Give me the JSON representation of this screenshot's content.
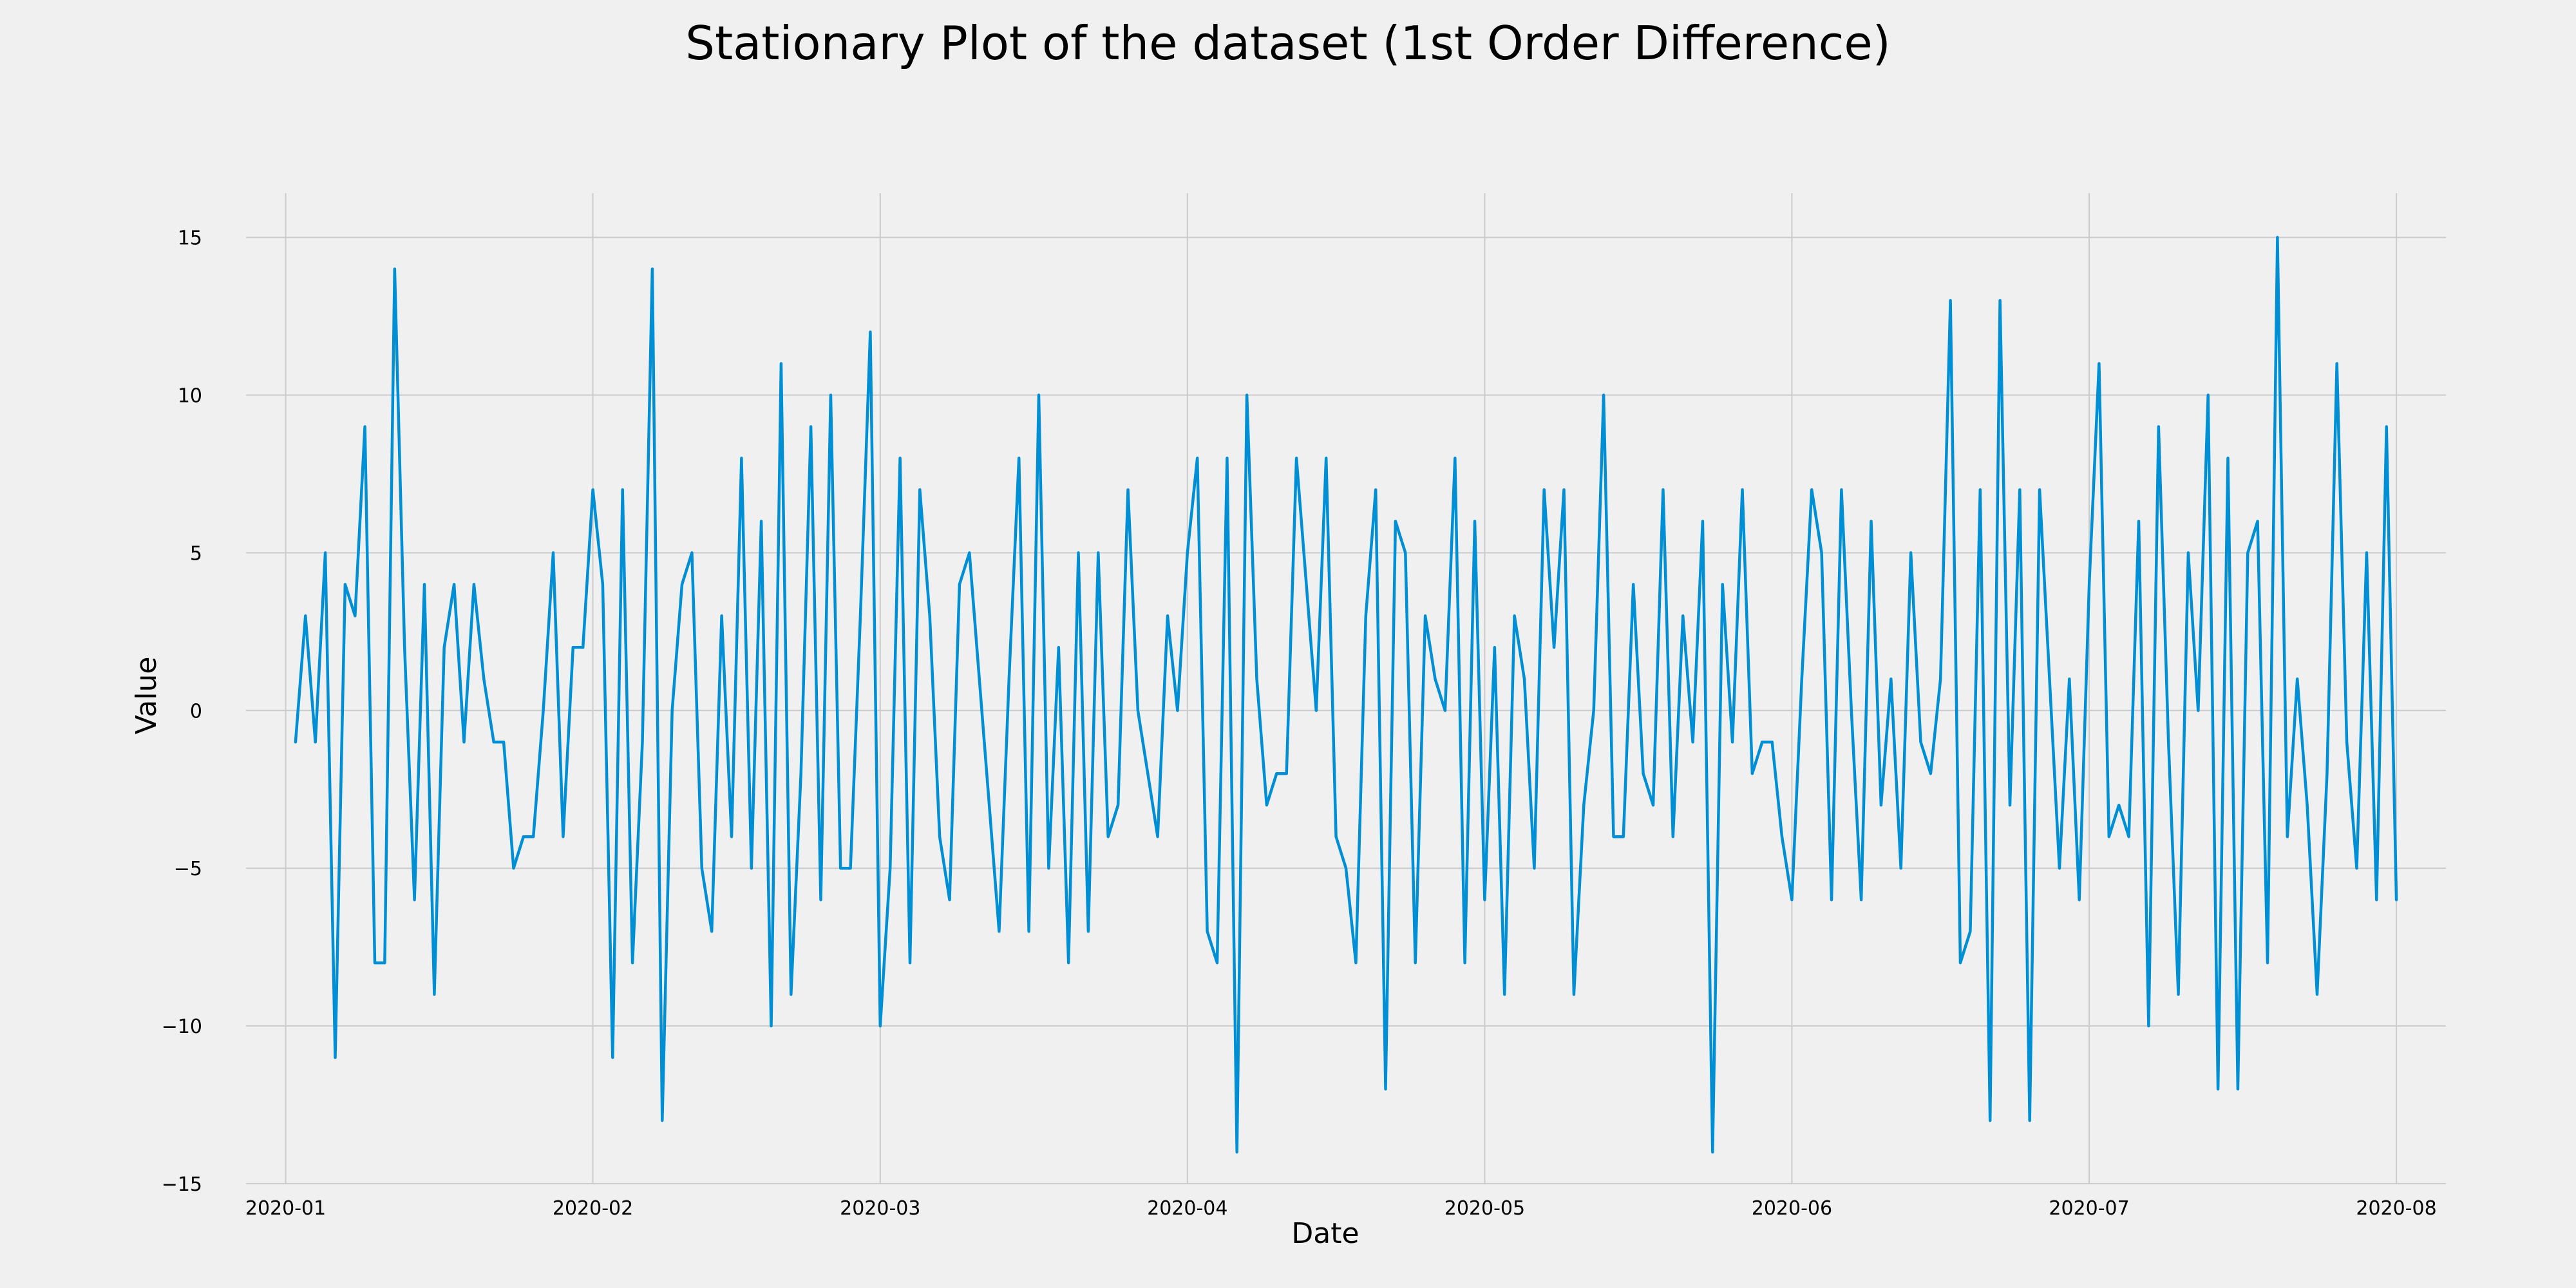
{
  "chart_data": {
    "type": "line",
    "title": "Stationary Plot of the dataset (1st Order Difference)",
    "xlabel": "Date",
    "ylabel": "Value",
    "start_date": "2020-01-02",
    "xlim": [
      "2019-12-28",
      "2020-08-06"
    ],
    "ylim": [
      -15.0,
      16.4
    ],
    "x_ticks": [
      "2020-01",
      "2020-02",
      "2020-03",
      "2020-04",
      "2020-05",
      "2020-06",
      "2020-07",
      "2020-08"
    ],
    "y_ticks": [
      15,
      10,
      5,
      0,
      -5,
      -10,
      -15
    ],
    "y_tick_labels": [
      "15",
      "10",
      "5",
      "0",
      "−5",
      "−10",
      "−15"
    ],
    "grid": true,
    "legend": "none",
    "color": "#008fd5",
    "series": [
      {
        "x": [
          "2020-01-02",
          "2020-01-03",
          "2020-01-04",
          "2020-01-05",
          "2020-01-06",
          "2020-01-07",
          "2020-01-08",
          "2020-01-09",
          "2020-01-10",
          "2020-01-11",
          "2020-01-12",
          "2020-01-13",
          "2020-01-14",
          "2020-01-15",
          "2020-01-16",
          "2020-01-17",
          "2020-01-18",
          "2020-01-19",
          "2020-01-20",
          "2020-01-21",
          "2020-01-22",
          "2020-01-23",
          "2020-01-24",
          "2020-01-25",
          "2020-01-26",
          "2020-01-27",
          "2020-01-28",
          "2020-01-29",
          "2020-01-30",
          "2020-01-31",
          "2020-02-01",
          "2020-02-02",
          "2020-02-03",
          "2020-02-04",
          "2020-02-05",
          "2020-02-06",
          "2020-02-07",
          "2020-02-08",
          "2020-02-09",
          "2020-02-10",
          "2020-02-11",
          "2020-02-12",
          "2020-02-13",
          "2020-02-14",
          "2020-02-15",
          "2020-02-16",
          "2020-02-17",
          "2020-02-18",
          "2020-02-19",
          "2020-02-20",
          "2020-02-21",
          "2020-02-22",
          "2020-02-23",
          "2020-02-24",
          "2020-02-25",
          "2020-02-26",
          "2020-02-27",
          "2020-02-28",
          "2020-02-29",
          "2020-03-01",
          "2020-03-02",
          "2020-03-03",
          "2020-03-04",
          "2020-03-05",
          "2020-03-06",
          "2020-03-07",
          "2020-03-08",
          "2020-03-09",
          "2020-03-10",
          "2020-03-11",
          "2020-03-12",
          "2020-03-13",
          "2020-03-14",
          "2020-03-15",
          "2020-03-16",
          "2020-03-17",
          "2020-03-18",
          "2020-03-19",
          "2020-03-20",
          "2020-03-21",
          "2020-03-22",
          "2020-03-23",
          "2020-03-24",
          "2020-03-25",
          "2020-03-26",
          "2020-03-27",
          "2020-03-28",
          "2020-03-29",
          "2020-03-30",
          "2020-03-31",
          "2020-04-01",
          "2020-04-02",
          "2020-04-03",
          "2020-04-04",
          "2020-04-05",
          "2020-04-06",
          "2020-04-07",
          "2020-04-08",
          "2020-04-09",
          "2020-04-10",
          "2020-04-11",
          "2020-04-12",
          "2020-04-13",
          "2020-04-14",
          "2020-04-15",
          "2020-04-16",
          "2020-04-17",
          "2020-04-18",
          "2020-04-19",
          "2020-04-20",
          "2020-04-21",
          "2020-04-22",
          "2020-04-23",
          "2020-04-24",
          "2020-04-25",
          "2020-04-26",
          "2020-04-27",
          "2020-04-28",
          "2020-04-29",
          "2020-04-30",
          "2020-05-01",
          "2020-05-02",
          "2020-05-03",
          "2020-05-04",
          "2020-05-05",
          "2020-05-06",
          "2020-05-07",
          "2020-05-08",
          "2020-05-09",
          "2020-05-10",
          "2020-05-11",
          "2020-05-12",
          "2020-05-13",
          "2020-05-14",
          "2020-05-15",
          "2020-05-16",
          "2020-05-17",
          "2020-05-18",
          "2020-05-19",
          "2020-05-20",
          "2020-05-21",
          "2020-05-22",
          "2020-05-23",
          "2020-05-24",
          "2020-05-25",
          "2020-05-26",
          "2020-05-27",
          "2020-05-28",
          "2020-05-29",
          "2020-05-30",
          "2020-05-31",
          "2020-06-01",
          "2020-06-02",
          "2020-06-03",
          "2020-06-04",
          "2020-06-05",
          "2020-06-06",
          "2020-06-07",
          "2020-06-08",
          "2020-06-09",
          "2020-06-10",
          "2020-06-11",
          "2020-06-12",
          "2020-06-13",
          "2020-06-14",
          "2020-06-15",
          "2020-06-16",
          "2020-06-17",
          "2020-06-18",
          "2020-06-19",
          "2020-06-20",
          "2020-06-21",
          "2020-06-22",
          "2020-06-23",
          "2020-06-24",
          "2020-06-25",
          "2020-06-26",
          "2020-06-27",
          "2020-06-28",
          "2020-06-29",
          "2020-06-30",
          "2020-07-01",
          "2020-07-02",
          "2020-07-03",
          "2020-07-04",
          "2020-07-05",
          "2020-07-06",
          "2020-07-07",
          "2020-07-08",
          "2020-07-09",
          "2020-07-10",
          "2020-07-11",
          "2020-07-12",
          "2020-07-13",
          "2020-07-14",
          "2020-07-15",
          "2020-07-16",
          "2020-07-17",
          "2020-07-18",
          "2020-07-19",
          "2020-07-20",
          "2020-07-21",
          "2020-07-22",
          "2020-07-23",
          "2020-07-24",
          "2020-07-25",
          "2020-07-26",
          "2020-07-27",
          "2020-07-28",
          "2020-07-29",
          "2020-07-30",
          "2020-07-31",
          "2020-08-01"
        ],
        "values": [
          -1,
          3,
          -1,
          5,
          -11,
          4,
          3,
          9,
          -8,
          -8,
          14,
          2,
          -6,
          4,
          -9,
          2,
          4,
          -1,
          4,
          1,
          -1,
          -1,
          -5,
          -4,
          -4,
          0,
          5,
          -4,
          2,
          2,
          7,
          4,
          -11,
          7,
          -8,
          -1,
          14,
          -13,
          0,
          4,
          5,
          -5,
          -7,
          3,
          -4,
          8,
          -5,
          6,
          -10,
          11,
          -9,
          -2,
          9,
          -6,
          10,
          -5,
          -5,
          3,
          12,
          -10,
          -5,
          8,
          -8,
          7,
          3,
          -4,
          -6,
          4,
          5,
          1,
          -3,
          -7,
          1,
          8,
          -7,
          10,
          -5,
          2,
          -8,
          5,
          -7,
          5,
          -4,
          -3,
          7,
          0,
          -2,
          -4,
          3,
          0,
          5,
          8,
          -7,
          -8,
          8,
          -14,
          10,
          1,
          -3,
          -2,
          -2,
          8,
          4,
          0,
          8,
          -4,
          -5,
          -8,
          3,
          7,
          -12,
          6,
          5,
          -8,
          3,
          1,
          0,
          8,
          -8,
          6,
          -6,
          2,
          -9,
          3,
          1,
          -5,
          7,
          2,
          7,
          -9,
          -3,
          0,
          10,
          -4,
          -4,
          4,
          -2,
          -3,
          7,
          -4,
          3,
          -1,
          6,
          -14,
          4,
          -1,
          7,
          -2,
          -1,
          -1,
          -4,
          -6,
          1,
          7,
          5,
          -6,
          7,
          0,
          -6,
          6,
          -3,
          1,
          -5,
          5,
          -1,
          -2,
          1,
          13,
          -8,
          -7,
          7,
          -13,
          13,
          -3,
          7,
          -13,
          7,
          1,
          -5,
          1,
          -6,
          4,
          11,
          -4,
          -3,
          -4,
          6,
          -10,
          9,
          -1,
          -9,
          5,
          0,
          10,
          -12,
          8,
          -12,
          5,
          6,
          -8,
          15,
          -4,
          1,
          -3,
          -9,
          -2,
          11,
          -1,
          -5,
          5,
          -6,
          9,
          -6
        ]
      }
    ]
  }
}
